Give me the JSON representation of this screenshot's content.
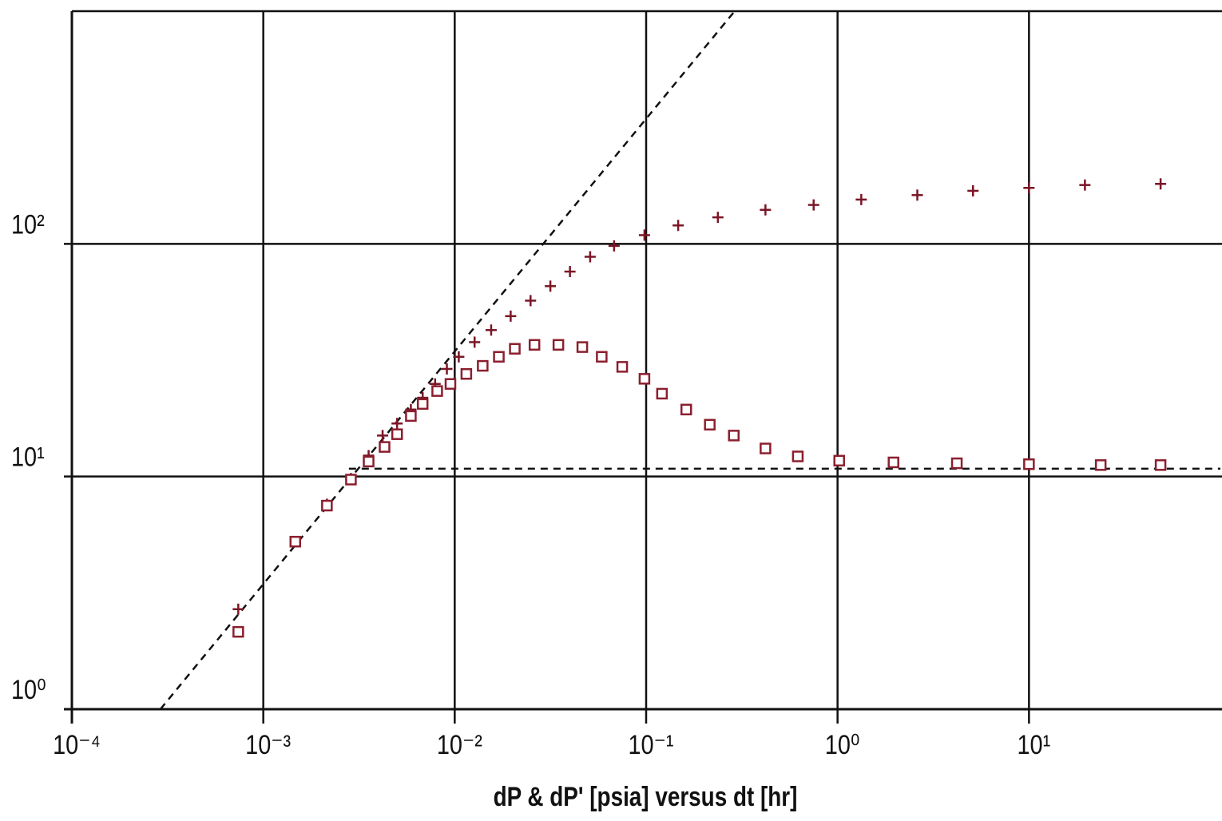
{
  "chart_data": {
    "type": "scatter",
    "x_label": "dP & dP' [psia]  versus  dt [hr]",
    "xlog": true,
    "ylog": true,
    "grid": true,
    "xlim": [
      0.0001,
      100
    ],
    "ylim": [
      1,
      1000
    ],
    "xticks": [
      {
        "value": 0.0001,
        "label": "10⁻⁴"
      },
      {
        "value": 0.001,
        "label": "10⁻³"
      },
      {
        "value": 0.01,
        "label": "10⁻²"
      },
      {
        "value": 0.1,
        "label": "10⁻¹"
      },
      {
        "value": 1,
        "label": "10⁰"
      },
      {
        "value": 10,
        "label": "10¹"
      }
    ],
    "yticks": [
      {
        "value": 1,
        "label": "10⁰"
      },
      {
        "value": 10,
        "label": "10¹"
      },
      {
        "value": 100,
        "label": "10²"
      }
    ],
    "series": [
      {
        "line": "dashed",
        "color": "#111111",
        "x": [
          0.00029,
          0.29
        ],
        "values": [
          1,
          1000
        ]
      },
      {
        "line": "dashed",
        "color": "#111111",
        "x": [
          0.0028,
          100
        ],
        "values": [
          10.8,
          10.8
        ]
      },
      {
        "marker": "plus",
        "color": "#7a1626",
        "x": [
          0.00074,
          0.00147,
          0.00215,
          0.00287,
          0.00355,
          0.0042,
          0.005,
          0.0059,
          0.0068,
          0.0079,
          0.0091,
          0.0105,
          0.0127,
          0.0155,
          0.0196,
          0.0249,
          0.0316,
          0.04,
          0.051,
          0.068,
          0.098,
          0.147,
          0.237,
          0.42,
          0.75,
          1.33,
          2.61,
          5.1,
          10,
          19.6,
          48.7
        ],
        "values": [
          2.69,
          5.25,
          7.6,
          9.8,
          12.3,
          15,
          16.9,
          19.4,
          21.8,
          25,
          29,
          32.7,
          37.8,
          42.6,
          48.9,
          57,
          65.8,
          76,
          88,
          98,
          109,
          120,
          130,
          140,
          147,
          155,
          162,
          169,
          174,
          179,
          181
        ]
      },
      {
        "marker": "square",
        "color": "#8b1f2e",
        "x": [
          0.00074,
          0.00147,
          0.00215,
          0.00287,
          0.00355,
          0.0043,
          0.005,
          0.0059,
          0.0068,
          0.0081,
          0.0095,
          0.0115,
          0.014,
          0.017,
          0.0206,
          0.0261,
          0.0348,
          0.0464,
          0.0586,
          0.075,
          0.098,
          0.121,
          0.162,
          0.215,
          0.287,
          0.42,
          0.62,
          1.02,
          1.96,
          4.2,
          10,
          23.7,
          48.7
        ],
        "values": [
          2.15,
          5.25,
          7.5,
          9.7,
          11.6,
          13.4,
          15.2,
          18.2,
          20.5,
          23.3,
          25,
          27.6,
          29.9,
          32.7,
          35.4,
          36.8,
          36.8,
          36,
          32.7,
          29.6,
          26.3,
          22.7,
          19.4,
          16.7,
          15,
          13.2,
          12.2,
          11.7,
          11.5,
          11.4,
          11.3,
          11.2,
          11.2
        ]
      }
    ]
  }
}
